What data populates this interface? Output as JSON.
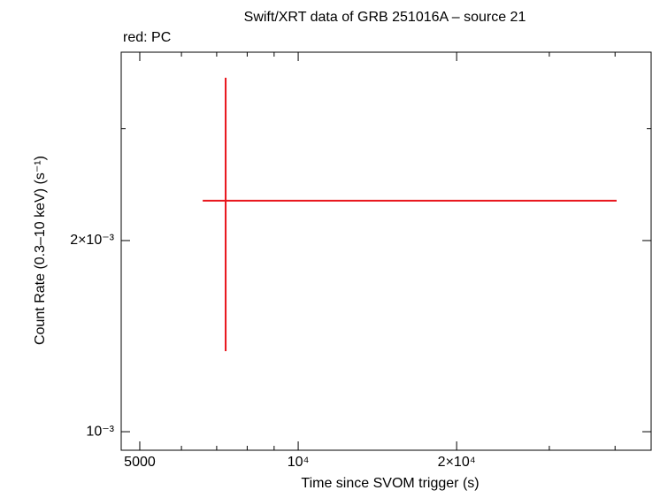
{
  "chart_data": {
    "type": "scatter",
    "title": "Swift/XRT data of GRB 251016A – source 21",
    "subtitle": "red: PC",
    "x_label": "Time since SVOM trigger (s)",
    "y_label": "Count Rate (0.3–10 keV) (s⁻¹)",
    "x_log": true,
    "y_log": true,
    "xlim": [
      4610,
      46840
    ],
    "ylim": [
      0.000935,
      0.00396
    ],
    "xticks": [
      5000,
      {
        "value": 10000,
        "label": "10⁴"
      },
      {
        "value": 20000,
        "label": "2×10⁴"
      }
    ],
    "xminorticks": [
      6000,
      7000,
      8000,
      9000,
      30000,
      40000
    ],
    "yticks": [
      {
        "value": 0.001,
        "label": "10⁻³"
      },
      {
        "value": 0.002,
        "label": "2×10⁻³"
      }
    ],
    "yminorticks": [
      0.003
    ],
    "series": [
      {
        "color": "#e8141b",
        "x": [
          7280
        ],
        "y": [
          0.002311
        ],
        "xerr": [
          [
            695,
            32990
          ]
        ],
        "yerr": [
          [
            0.000972,
            0.001299
          ]
        ]
      }
    ]
  }
}
